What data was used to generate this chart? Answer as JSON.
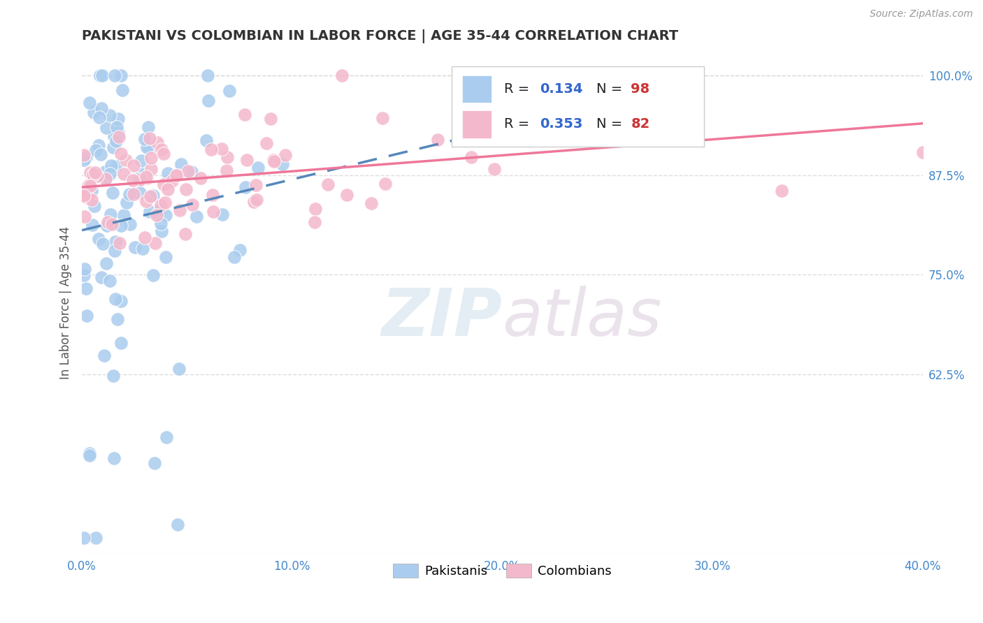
{
  "title": "PAKISTANI VS COLOMBIAN IN LABOR FORCE | AGE 35-44 CORRELATION CHART",
  "source": "Source: ZipAtlas.com",
  "xlim": [
    0.0,
    0.4
  ],
  "ylim": [
    0.4,
    1.03
  ],
  "ytick_vals": [
    0.625,
    0.75,
    0.875,
    1.0
  ],
  "ytick_labels": [
    "62.5%",
    "75.0%",
    "87.5%",
    "100.0%"
  ],
  "xtick_vals": [
    0.0,
    0.1,
    0.2,
    0.3,
    0.4
  ],
  "xtick_labels": [
    "0.0%",
    "10.0%",
    "20.0%",
    "30.0%",
    "40.0%"
  ],
  "R_pakistani": 0.134,
  "N_pakistani": 98,
  "R_colombian": 0.353,
  "N_colombian": 82,
  "pakistani_color": "#aaccee",
  "colombian_color": "#f4b8cc",
  "trendline_pakistani_color": "#5588bb",
  "trendline_colombian_color": "#ee7799",
  "tick_label_color": "#4488cc",
  "title_color": "#333333",
  "legend_R_color": "#3366cc",
  "legend_N_color": "#cc3333",
  "watermark_color": "#d8e8f0",
  "background_color": "#ffffff",
  "grid_color": "#dddddd"
}
